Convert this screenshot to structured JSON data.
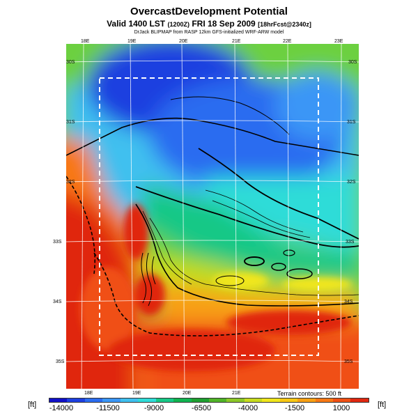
{
  "title": "OvercastDevelopment Potential",
  "subtitle_main": "Valid 1400 LST",
  "subtitle_small1": "(1200Z)",
  "subtitle_day": "FRI 18 Sep 2009",
  "subtitle_small2": "[18hrFcst@2340z]",
  "credit": "DrJack BLIPMAP from RASP 12km GFS-initialized WRF-ARW model",
  "top_axis": [
    "18E",
    "19E",
    "20E",
    "21E",
    "22E",
    "23E"
  ],
  "bottom_axis": [
    "18E",
    "19E",
    "20E",
    "21E"
  ],
  "left_axis": [
    "30S",
    "31S",
    "32S",
    "33S",
    "34S",
    "35S"
  ],
  "right_axis": [
    "30S",
    "31S",
    "32S",
    "33S",
    "34S",
    "35S"
  ],
  "terrain_note": "Terrain contours: 500 ft",
  "unit_left": "[ft]",
  "unit_right": "[ft]",
  "colorbar": {
    "ticks": [
      "-14000",
      "-11500",
      "-9000",
      "-6500",
      "-4000",
      "-1500",
      "1000"
    ],
    "colors": [
      "#1010c8",
      "#1d3fe0",
      "#2a6cf0",
      "#3a96f6",
      "#3fc0ef",
      "#2fdcd8",
      "#16c886",
      "#10b450",
      "#1ea030",
      "#50b428",
      "#8cc828",
      "#c8dc1e",
      "#f0e61c",
      "#f8c814",
      "#f8a014",
      "#f87814",
      "#f05014",
      "#e02810"
    ]
  }
}
